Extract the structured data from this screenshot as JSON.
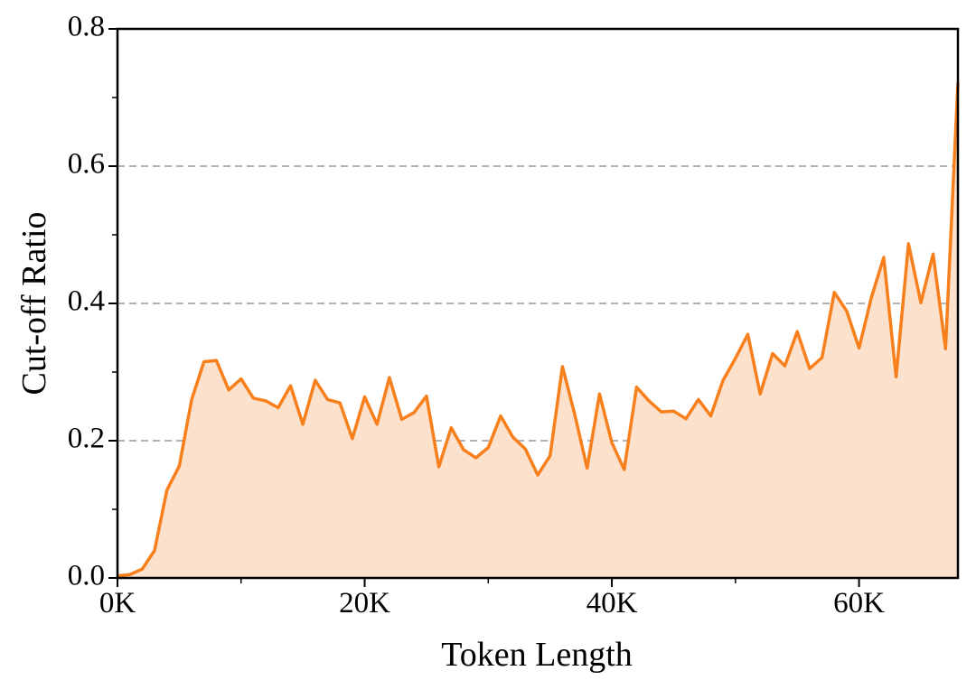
{
  "chart_data": {
    "type": "area",
    "xlabel": "Token Length",
    "ylabel": "Cut-off Ratio",
    "x": [
      0,
      1000,
      2000,
      3000,
      4000,
      5000,
      6000,
      7000,
      8000,
      9000,
      10000,
      11000,
      12000,
      13000,
      14000,
      15000,
      16000,
      17000,
      18000,
      19000,
      20000,
      21000,
      22000,
      23000,
      24000,
      25000,
      26000,
      27000,
      28000,
      29000,
      30000,
      31000,
      32000,
      33000,
      34000,
      35000,
      36000,
      37000,
      38000,
      39000,
      40000,
      41000,
      42000,
      43000,
      44000,
      45000,
      46000,
      47000,
      48000,
      49000,
      50000,
      51000,
      52000,
      53000,
      54000,
      55000,
      56000,
      57000,
      58000,
      59000,
      60000,
      61000,
      62000,
      63000,
      64000,
      65000,
      66000,
      67000,
      68000
    ],
    "values": [
      0.003,
      0.005,
      0.013,
      0.04,
      0.128,
      0.163,
      0.26,
      0.315,
      0.317,
      0.274,
      0.29,
      0.262,
      0.258,
      0.248,
      0.28,
      0.224,
      0.288,
      0.26,
      0.255,
      0.203,
      0.264,
      0.224,
      0.292,
      0.231,
      0.241,
      0.265,
      0.162,
      0.219,
      0.187,
      0.175,
      0.19,
      0.236,
      0.205,
      0.188,
      0.15,
      0.178,
      0.308,
      0.238,
      0.16,
      0.268,
      0.197,
      0.158,
      0.278,
      0.258,
      0.242,
      0.243,
      0.232,
      0.26,
      0.236,
      0.288,
      0.32,
      0.355,
      0.268,
      0.327,
      0.309,
      0.359,
      0.305,
      0.321,
      0.416,
      0.389,
      0.335,
      0.409,
      0.467,
      0.293,
      0.487,
      0.401,
      0.472,
      0.334,
      0.722
    ],
    "color": "#f77f1c",
    "fill_color": "#fce1cd",
    "xlim": [
      0,
      68000
    ],
    "xticks": [
      {
        "value": 0,
        "label": "0K"
      },
      {
        "value": 20000,
        "label": "20K"
      },
      {
        "value": 40000,
        "label": "40K"
      },
      {
        "value": 60000,
        "label": "60K"
      }
    ],
    "xminorticks": [
      10000,
      30000,
      50000
    ],
    "ylim": [
      0,
      0.8
    ],
    "yticks": [
      {
        "value": 0,
        "label": "0.0"
      },
      {
        "value": 0.2,
        "label": "0.2"
      },
      {
        "value": 0.4,
        "label": "0.4"
      },
      {
        "value": 0.6,
        "label": "0.6"
      },
      {
        "value": 0.8,
        "label": "0.8"
      }
    ],
    "yminorticks": [
      0.1,
      0.3,
      0.5,
      0.7
    ],
    "grid": true
  }
}
